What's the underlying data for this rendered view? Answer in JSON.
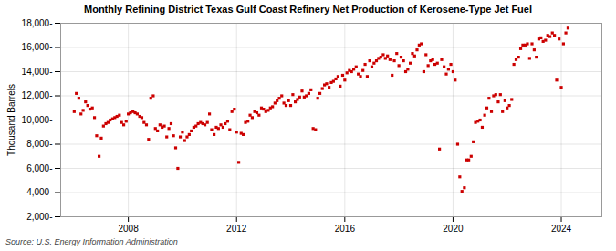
{
  "chart_data": {
    "type": "scatter",
    "title": "Monthly Refining District Texas Gulf Coast Refinery Net Production of Kerosene-Type Jet Fuel",
    "ylabel": "Thousand Barrels",
    "annotations": [
      "Source: U.S. Energy Information Administration"
    ],
    "color": "#cc0000",
    "marker": "square",
    "grid": true,
    "xlim": [
      2005.5,
      2025.5
    ],
    "xticks": [
      2008,
      2012,
      2016,
      2020,
      2024
    ],
    "ylim": [
      2000,
      18000
    ],
    "yticks": [
      {
        "value": 2000,
        "label": "2,000-"
      },
      {
        "value": 4000,
        "label": "4,000-"
      },
      {
        "value": 6000,
        "label": "6,000-"
      },
      {
        "value": 8000,
        "label": "8,000-"
      },
      {
        "value": 10000,
        "label": "10,000-"
      },
      {
        "value": 12000,
        "label": "12,000-"
      },
      {
        "value": 14000,
        "label": "14,000-"
      },
      {
        "value": 16000,
        "label": "16,000-"
      },
      {
        "value": 18000,
        "label": "18,000-"
      }
    ],
    "x": [
      2006.0,
      2006.08,
      2006.17,
      2006.25,
      2006.33,
      2006.42,
      2006.5,
      2006.58,
      2006.67,
      2006.75,
      2006.83,
      2006.92,
      2007.0,
      2007.08,
      2007.17,
      2007.25,
      2007.33,
      2007.42,
      2007.5,
      2007.58,
      2007.67,
      2007.75,
      2007.83,
      2007.92,
      2008.0,
      2008.08,
      2008.17,
      2008.25,
      2008.33,
      2008.42,
      2008.5,
      2008.58,
      2008.67,
      2008.75,
      2008.83,
      2008.92,
      2009.0,
      2009.08,
      2009.17,
      2009.25,
      2009.33,
      2009.42,
      2009.5,
      2009.58,
      2009.67,
      2009.75,
      2009.83,
      2009.92,
      2010.0,
      2010.08,
      2010.17,
      2010.25,
      2010.33,
      2010.42,
      2010.5,
      2010.58,
      2010.67,
      2010.75,
      2010.83,
      2010.92,
      2011.0,
      2011.08,
      2011.17,
      2011.25,
      2011.33,
      2011.42,
      2011.5,
      2011.58,
      2011.67,
      2011.75,
      2011.83,
      2011.92,
      2012.0,
      2012.08,
      2012.17,
      2012.25,
      2012.33,
      2012.42,
      2012.5,
      2012.58,
      2012.67,
      2012.75,
      2012.83,
      2012.92,
      2013.0,
      2013.08,
      2013.17,
      2013.25,
      2013.33,
      2013.42,
      2013.5,
      2013.58,
      2013.67,
      2013.75,
      2013.83,
      2013.92,
      2014.0,
      2014.08,
      2014.17,
      2014.25,
      2014.33,
      2014.42,
      2014.5,
      2014.58,
      2014.67,
      2014.75,
      2014.83,
      2014.92,
      2015.0,
      2015.08,
      2015.17,
      2015.25,
      2015.33,
      2015.42,
      2015.5,
      2015.58,
      2015.67,
      2015.75,
      2015.83,
      2015.92,
      2016.0,
      2016.08,
      2016.17,
      2016.25,
      2016.33,
      2016.42,
      2016.5,
      2016.58,
      2016.67,
      2016.75,
      2016.83,
      2016.92,
      2017.0,
      2017.08,
      2017.17,
      2017.25,
      2017.33,
      2017.42,
      2017.5,
      2017.58,
      2017.67,
      2017.75,
      2017.83,
      2017.92,
      2018.0,
      2018.08,
      2018.17,
      2018.25,
      2018.33,
      2018.42,
      2018.5,
      2018.58,
      2018.67,
      2018.75,
      2018.83,
      2018.92,
      2019.0,
      2019.08,
      2019.17,
      2019.25,
      2019.33,
      2019.42,
      2019.5,
      2019.58,
      2019.67,
      2019.75,
      2019.83,
      2019.92,
      2020.0,
      2020.08,
      2020.17,
      2020.25,
      2020.33,
      2020.42,
      2020.5,
      2020.58,
      2020.67,
      2020.75,
      2020.83,
      2020.92,
      2021.0,
      2021.08,
      2021.17,
      2021.25,
      2021.33,
      2021.42,
      2021.5,
      2021.58,
      2021.67,
      2021.75,
      2021.83,
      2021.92,
      2022.0,
      2022.08,
      2022.17,
      2022.25,
      2022.33,
      2022.42,
      2022.5,
      2022.58,
      2022.67,
      2022.75,
      2022.83,
      2022.92,
      2023.0,
      2023.08,
      2023.17,
      2023.25,
      2023.33,
      2023.42,
      2023.5,
      2023.58,
      2023.67,
      2023.75,
      2023.83,
      2023.92,
      2024.0,
      2024.08,
      2024.17,
      2024.25
    ],
    "values": [
      10700,
      12200,
      11800,
      10500,
      10800,
      11500,
      11200,
      10900,
      11000,
      10200,
      8700,
      7000,
      8500,
      9500,
      9700,
      9800,
      10000,
      10100,
      10200,
      10300,
      10400,
      9800,
      9600,
      9900,
      10500,
      10600,
      10700,
      10600,
      10500,
      10300,
      10200,
      9800,
      9600,
      8400,
      11800,
      12000,
      9300,
      9100,
      9600,
      9400,
      9500,
      8600,
      9300,
      9700,
      8700,
      7700,
      6000,
      8600,
      9000,
      8300,
      8600,
      8800,
      9100,
      9400,
      9500,
      9700,
      9800,
      9700,
      9600,
      9800,
      10500,
      9200,
      8800,
      9400,
      9300,
      9600,
      9400,
      9700,
      9900,
      9200,
      10700,
      10900,
      9000,
      6500,
      8900,
      8800,
      9800,
      9900,
      10400,
      10200,
      10700,
      10600,
      10400,
      11000,
      10900,
      10700,
      10800,
      11000,
      11100,
      11400,
      11600,
      11800,
      12000,
      11400,
      11200,
      11600,
      11200,
      12100,
      11500,
      11700,
      11900,
      12400,
      11900,
      12000,
      12200,
      12500,
      9300,
      9200,
      11800,
      12200,
      12600,
      12900,
      13000,
      12700,
      13100,
      13200,
      13400,
      13600,
      12800,
      13700,
      13300,
      13900,
      14100,
      14000,
      14200,
      14400,
      13800,
      13600,
      14100,
      14600,
      13600,
      14900,
      14400,
      14700,
      14900,
      15100,
      15200,
      15400,
      15100,
      15300,
      15000,
      13700,
      14900,
      15500,
      14500,
      15200,
      14900,
      14000,
      14200,
      14700,
      15500,
      15300,
      15800,
      16200,
      16300,
      14000,
      15400,
      14500,
      14900,
      15000,
      14600,
      14700,
      7600,
      15000,
      14400,
      13800,
      14200,
      14600,
      14000,
      13300,
      8000,
      5300,
      4100,
      4400,
      6700,
      6700,
      7000,
      8200,
      9800,
      9900,
      10000,
      9400,
      10400,
      11000,
      11800,
      10700,
      12000,
      12100,
      11500,
      12100,
      10700,
      11600,
      11000,
      11200,
      11700,
      14600,
      15000,
      15200,
      15900,
      16200,
      16200,
      16300,
      15100,
      16300,
      15800,
      15200,
      16700,
      16800,
      16500,
      16600,
      17000,
      16900,
      17200,
      17000,
      13300,
      16700,
      12700,
      16300,
      17200,
      17600
    ]
  }
}
